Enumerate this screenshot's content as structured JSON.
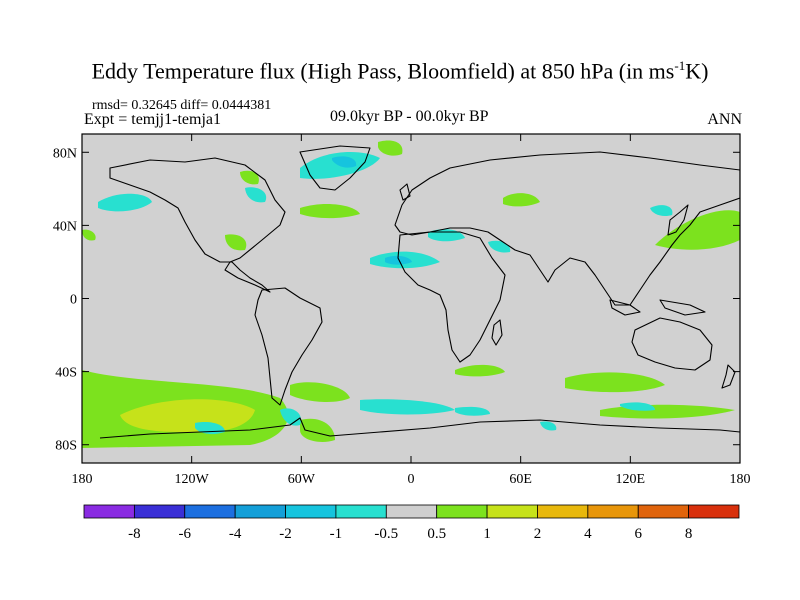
{
  "header": {
    "title_main": "Eddy Temperature flux (High Pass, Bloomfield) at 850 hPa (in ms",
    "title_sup": "-1",
    "title_end": "K)",
    "stats": "rmsd= 0.32645 diff= 0.0444381",
    "experiment": "Expt = temjj1-temja1",
    "period": "09.0kyr BP - 00.0kyr BP",
    "season": "ANN"
  },
  "axes": {
    "lat_ticks": [
      {
        "label": "80N",
        "value": 80
      },
      {
        "label": "40N",
        "value": 40
      },
      {
        "label": "0",
        "value": 0
      },
      {
        "label": "40S",
        "value": -40
      },
      {
        "label": "80S",
        "value": -80
      }
    ],
    "lon_ticks": [
      {
        "label": "180",
        "value": -180
      },
      {
        "label": "120W",
        "value": -120
      },
      {
        "label": "60W",
        "value": -60
      },
      {
        "label": "0",
        "value": 0
      },
      {
        "label": "60E",
        "value": 60
      },
      {
        "label": "120E",
        "value": 120
      },
      {
        "label": "180",
        "value": 180
      }
    ],
    "lon_range": [
      -180,
      180
    ],
    "lat_range": [
      -90,
      90
    ]
  },
  "colorbar": {
    "labels": [
      "-8",
      "-6",
      "-4",
      "-2",
      "-1",
      "-0.5",
      "0.5",
      "1",
      "2",
      "4",
      "6",
      "8"
    ],
    "colors": [
      "#8a2be2",
      "#3a2fd6",
      "#1c6fe0",
      "#149fd8",
      "#16c4de",
      "#28e0d0",
      "#cfcfcf",
      "#7ce21e",
      "#c6e21a",
      "#e8b80c",
      "#e8960a",
      "#e0640c",
      "#d8300c"
    ]
  },
  "map": {
    "ocean_color": "#d1d1d1",
    "neutral_color": "#d1d1d1",
    "field_colors": {
      "neg1": "#28e0d0",
      "neg2": "#16c4de",
      "pos1": "#7ce21e",
      "pos2": "#c6e21a"
    }
  }
}
